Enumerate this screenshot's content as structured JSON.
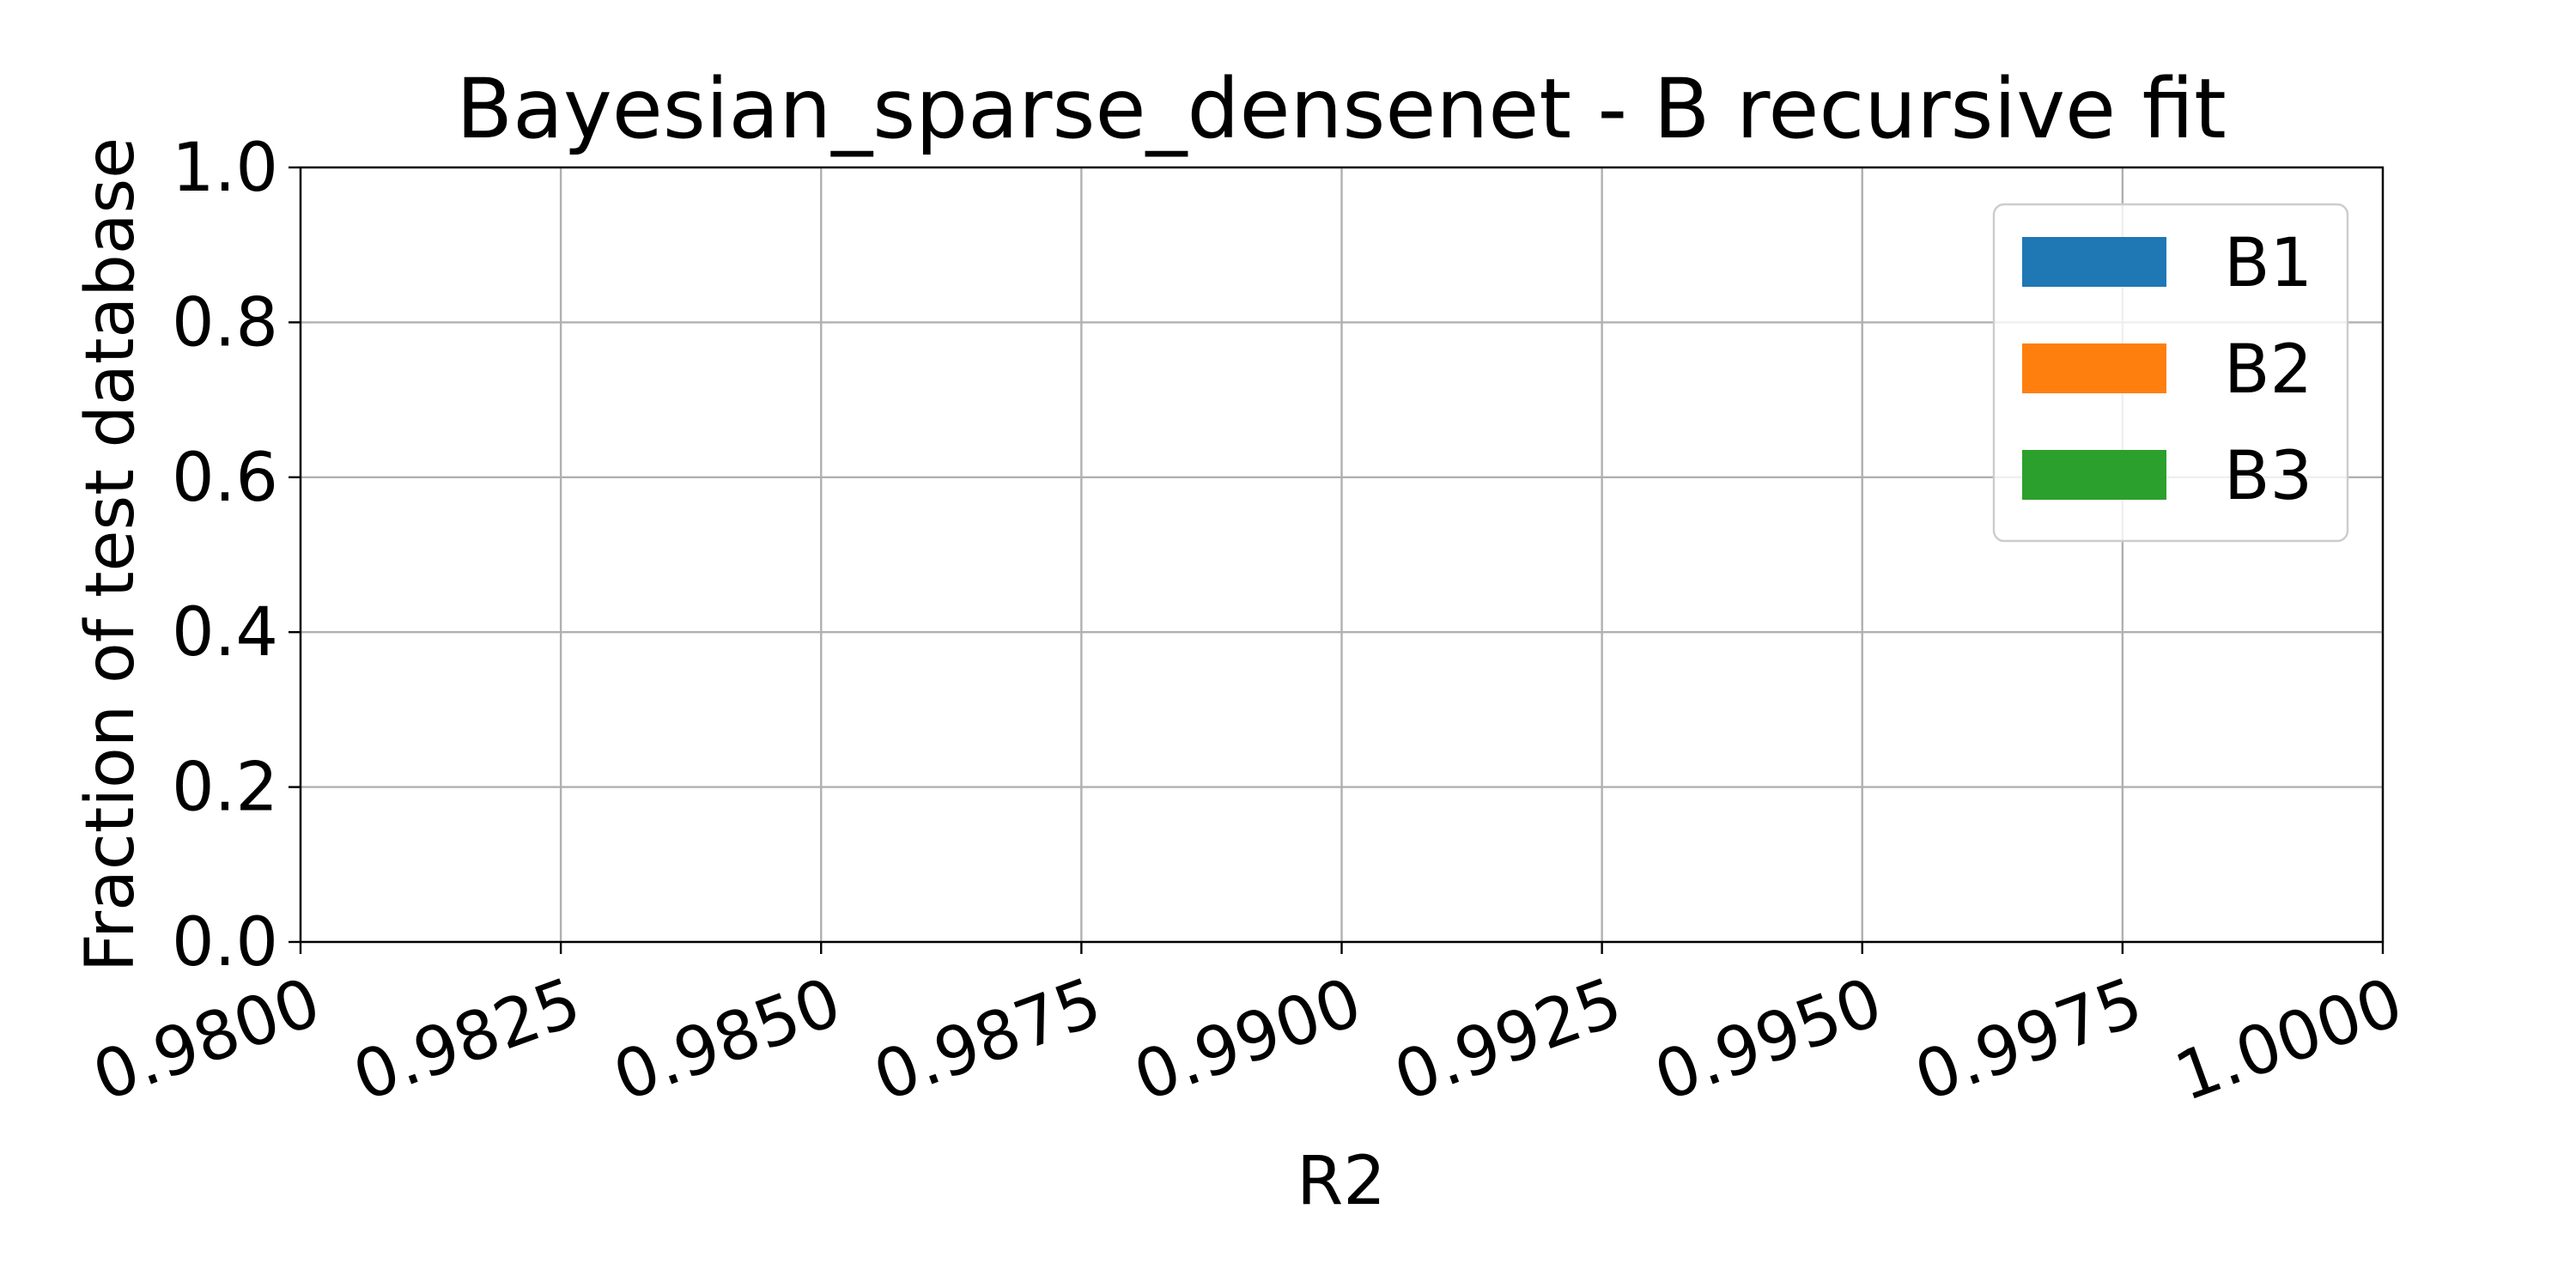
{
  "chart_data": {
    "type": "bar",
    "title": "Bayesian_sparse_densenet - B recursive fit",
    "xlabel": "R2",
    "ylabel": "Fraction of test database",
    "xlim": [
      0.98,
      1.0
    ],
    "ylim": [
      0.0,
      1.0
    ],
    "xticks": [
      "0.9800",
      "0.9825",
      "0.9850",
      "0.9875",
      "0.9900",
      "0.9925",
      "0.9950",
      "0.9975",
      "1.0000"
    ],
    "yticks": [
      "0.0",
      "0.2",
      "0.4",
      "0.6",
      "0.8",
      "1.0"
    ],
    "grid": true,
    "legend_position": "top-right",
    "series": [
      {
        "name": "B1",
        "color": "#1f77b4",
        "values": []
      },
      {
        "name": "B2",
        "color": "#ff7f0e",
        "values": []
      },
      {
        "name": "B3",
        "color": "#2ca02c",
        "values": []
      }
    ]
  }
}
